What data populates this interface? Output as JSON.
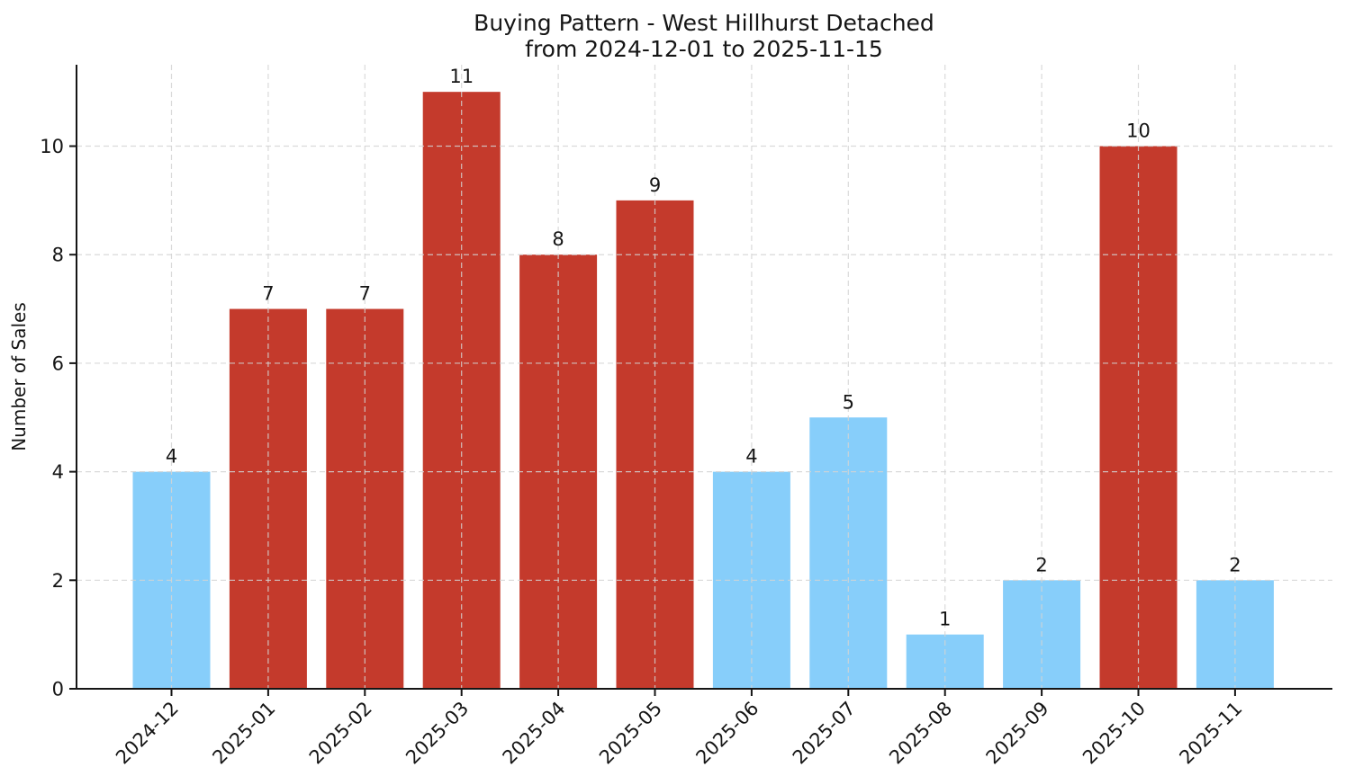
{
  "chart_data": {
    "type": "bar",
    "title": "Buying Pattern - West Hillhurst Detached",
    "subtitle": "from 2024-12-01 to 2025-11-15",
    "xlabel": "",
    "ylabel": "Number of Sales",
    "categories": [
      "2024-12",
      "2025-01",
      "2025-02",
      "2025-03",
      "2025-04",
      "2025-05",
      "2025-06",
      "2025-07",
      "2025-08",
      "2025-09",
      "2025-10",
      "2025-11"
    ],
    "values": [
      4,
      7,
      7,
      11,
      8,
      9,
      4,
      5,
      1,
      2,
      10,
      2
    ],
    "bar_value_labels": [
      "4",
      "7",
      "7",
      "11",
      "8",
      "9",
      "4",
      "5",
      "1",
      "2",
      "10",
      "2"
    ],
    "bar_colors": [
      "#87CEFA",
      "#C43A2C",
      "#C43A2C",
      "#C43A2C",
      "#C43A2C",
      "#C43A2C",
      "#87CEFA",
      "#87CEFA",
      "#87CEFA",
      "#87CEFA",
      "#C43A2C",
      "#87CEFA"
    ],
    "palette": {
      "blue": "#87CEFA",
      "red": "#C43A2C"
    },
    "yticks": [
      0,
      2,
      4,
      6,
      8,
      10
    ],
    "ylim": [
      0,
      11.5
    ],
    "grid": true,
    "grid_style": "dashed",
    "grid_color": "#d4d4d4",
    "axis_color": "#151515",
    "legend_position": "none",
    "x_tick_rotation_deg": 45
  }
}
